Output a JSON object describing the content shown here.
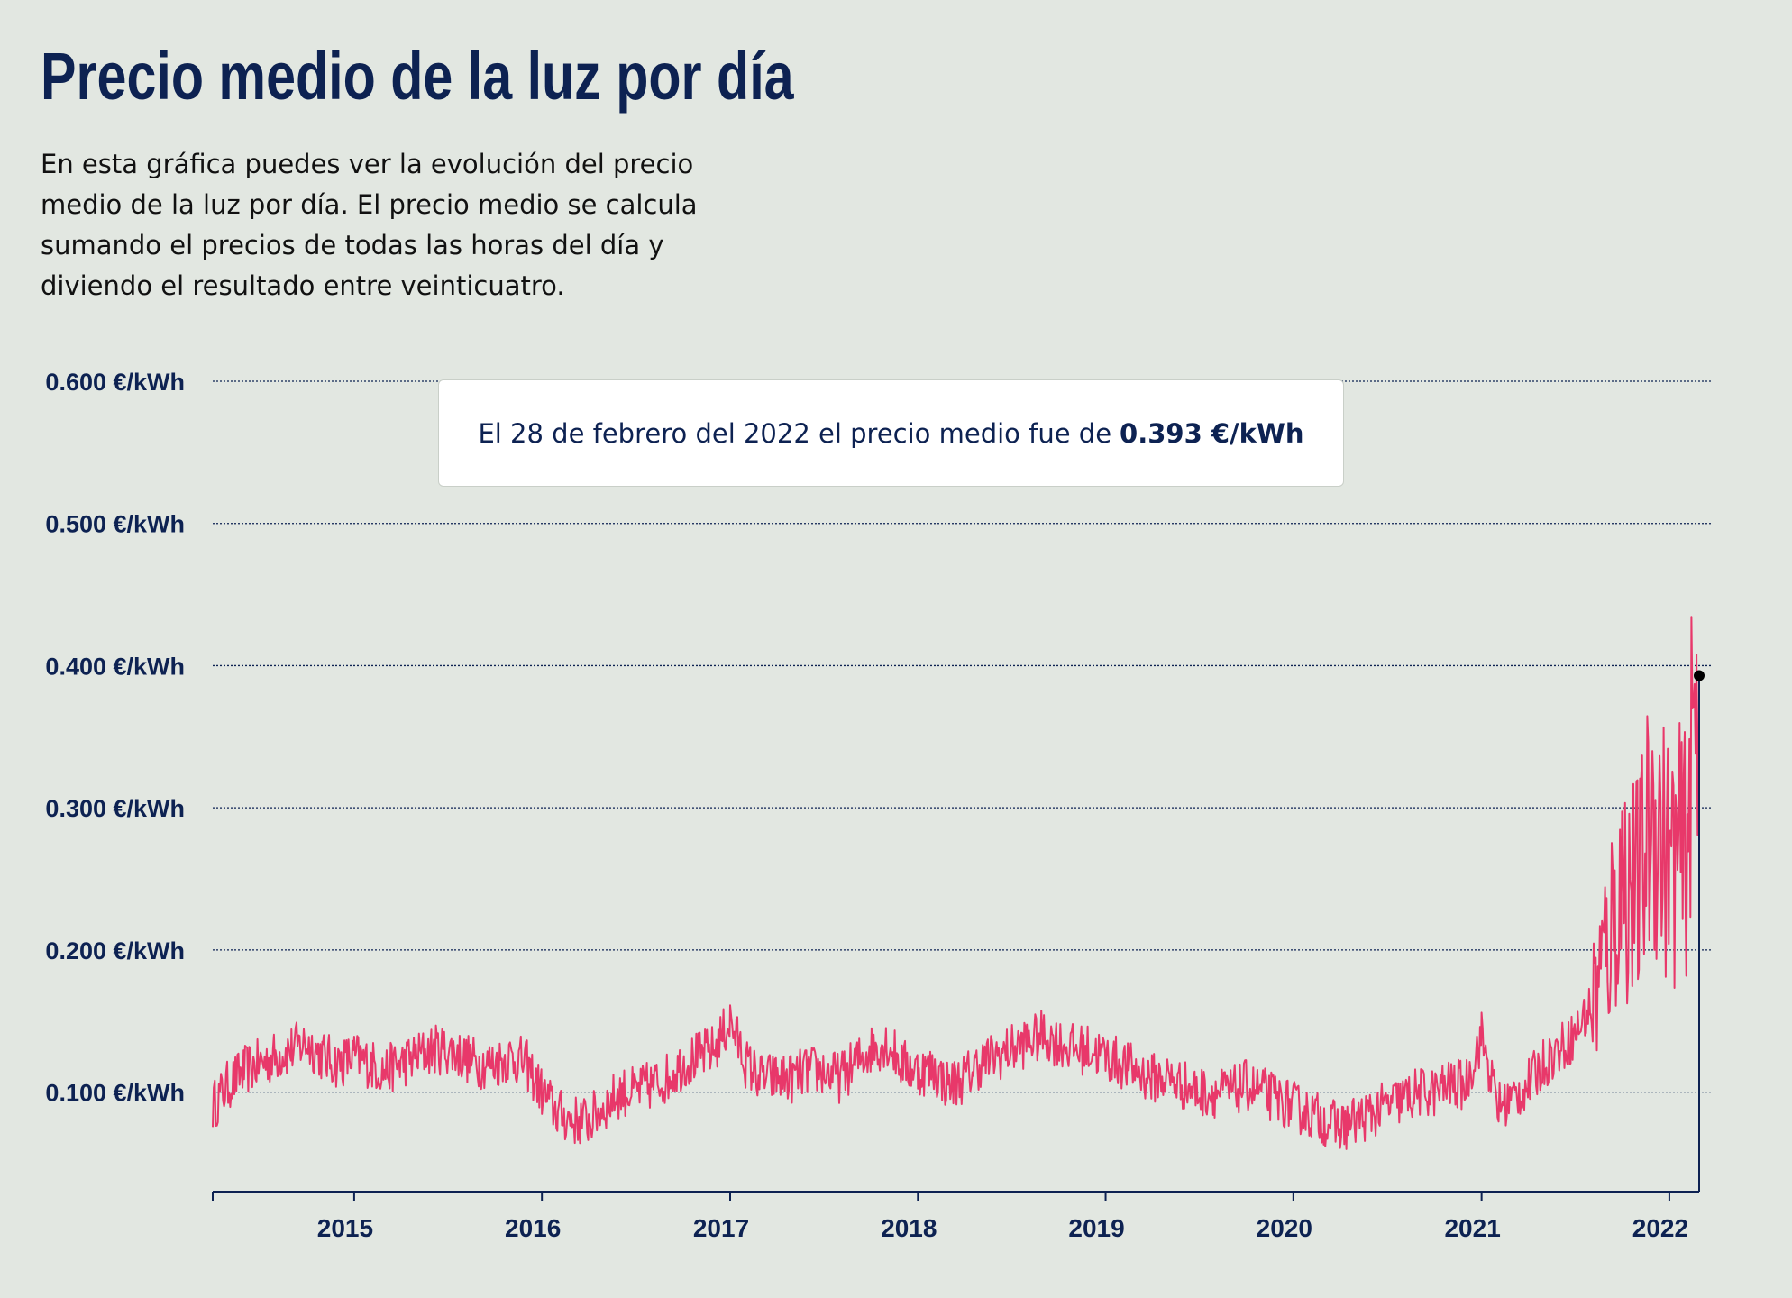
{
  "title": "Precio medio de la luz por día",
  "description": "En esta gráfica puedes ver la evolución del precio medio de la luz por día. El precio medio se calcula sumando el precios de todas las horas del día y diviendo el resultado entre veinticuatro.",
  "tooltip": {
    "text": "El 28 de febrero del 2022 el precio medio fue de",
    "value": "0.393 €/kWh"
  },
  "colors": {
    "line": "#e8386a",
    "text": "#0d2252",
    "background": "#e2e7e1",
    "grid": "#0d2252"
  },
  "chart_data": {
    "type": "line",
    "title": "Precio medio de la luz por día",
    "ylabel": "€/kWh",
    "xlim": [
      "2014-04-01",
      "2022-02-28"
    ],
    "ylim": [
      0.03,
      0.6
    ],
    "grid": true,
    "y_ticks": [
      0.1,
      0.2,
      0.3,
      0.4,
      0.5,
      0.6
    ],
    "y_tick_labels": [
      "0.100 €/kWh",
      "0.200 €/kWh",
      "0.300 €/kWh",
      "0.400 €/kWh",
      "0.500 €/kWh",
      "0.600 €/kWh"
    ],
    "x_ticks": [
      "2015-01-01",
      "2016-01-01",
      "2017-01-01",
      "2018-01-01",
      "2019-01-01",
      "2020-01-01",
      "2021-01-01",
      "2022-01-01"
    ],
    "x_tick_labels": [
      "2015",
      "2016",
      "2017",
      "2018",
      "2019",
      "2020",
      "2021",
      "2022"
    ],
    "highlight": {
      "x": "2022-02-28",
      "y": 0.393
    },
    "series": [
      {
        "x": [
          "2014-04-01",
          "2014-05-01",
          "2014-06-01",
          "2014-07-01",
          "2014-08-01",
          "2014-09-01",
          "2014-10-01",
          "2014-11-01",
          "2014-12-01",
          "2015-01-01",
          "2015-02-01",
          "2015-03-01",
          "2015-04-01",
          "2015-05-01",
          "2015-06-01",
          "2015-07-01",
          "2015-08-01",
          "2015-09-01",
          "2015-10-01",
          "2015-11-01",
          "2015-12-01",
          "2016-01-01",
          "2016-02-01",
          "2016-03-01",
          "2016-04-01",
          "2016-05-01",
          "2016-06-01",
          "2016-07-01",
          "2016-08-01",
          "2016-09-01",
          "2016-10-01",
          "2016-11-01",
          "2016-12-01",
          "2017-01-01",
          "2017-02-01",
          "2017-03-01",
          "2017-04-01",
          "2017-05-01",
          "2017-06-01",
          "2017-07-01",
          "2017-08-01",
          "2017-09-01",
          "2017-10-01",
          "2017-11-01",
          "2017-12-01",
          "2018-01-01",
          "2018-02-01",
          "2018-03-01",
          "2018-04-01",
          "2018-05-01",
          "2018-06-01",
          "2018-07-01",
          "2018-08-01",
          "2018-09-01",
          "2018-10-01",
          "2018-11-01",
          "2018-12-01",
          "2019-01-01",
          "2019-02-01",
          "2019-03-01",
          "2019-04-01",
          "2019-05-01",
          "2019-06-01",
          "2019-07-01",
          "2019-08-01",
          "2019-09-01",
          "2019-10-01",
          "2019-11-01",
          "2019-12-01",
          "2020-01-01",
          "2020-02-01",
          "2020-03-01",
          "2020-04-01",
          "2020-05-01",
          "2020-06-01",
          "2020-07-01",
          "2020-08-01",
          "2020-09-01",
          "2020-10-01",
          "2020-11-01",
          "2020-12-01",
          "2021-01-01",
          "2021-02-01",
          "2021-03-01",
          "2021-04-01",
          "2021-05-01",
          "2021-06-01",
          "2021-07-01",
          "2021-08-01",
          "2021-09-01",
          "2021-10-01",
          "2021-11-01",
          "2021-12-01",
          "2022-01-01",
          "2022-02-01",
          "2022-02-28"
        ],
        "values": [
          0.09,
          0.105,
          0.115,
          0.12,
          0.125,
          0.13,
          0.135,
          0.125,
          0.12,
          0.125,
          0.12,
          0.115,
          0.12,
          0.125,
          0.13,
          0.13,
          0.125,
          0.12,
          0.12,
          0.125,
          0.12,
          0.1,
          0.085,
          0.08,
          0.08,
          0.09,
          0.1,
          0.1,
          0.105,
          0.11,
          0.12,
          0.125,
          0.13,
          0.15,
          0.12,
          0.11,
          0.11,
          0.11,
          0.115,
          0.115,
          0.11,
          0.12,
          0.13,
          0.135,
          0.12,
          0.115,
          0.115,
          0.105,
          0.11,
          0.12,
          0.125,
          0.13,
          0.135,
          0.14,
          0.135,
          0.13,
          0.13,
          0.125,
          0.12,
          0.115,
          0.11,
          0.11,
          0.105,
          0.1,
          0.1,
          0.1,
          0.105,
          0.1,
          0.095,
          0.09,
          0.085,
          0.08,
          0.075,
          0.08,
          0.085,
          0.09,
          0.095,
          0.1,
          0.1,
          0.105,
          0.105,
          0.14,
          0.09,
          0.095,
          0.105,
          0.12,
          0.13,
          0.14,
          0.16,
          0.2,
          0.25,
          0.24,
          0.3,
          0.26,
          0.27,
          0.393
        ]
      }
    ]
  }
}
